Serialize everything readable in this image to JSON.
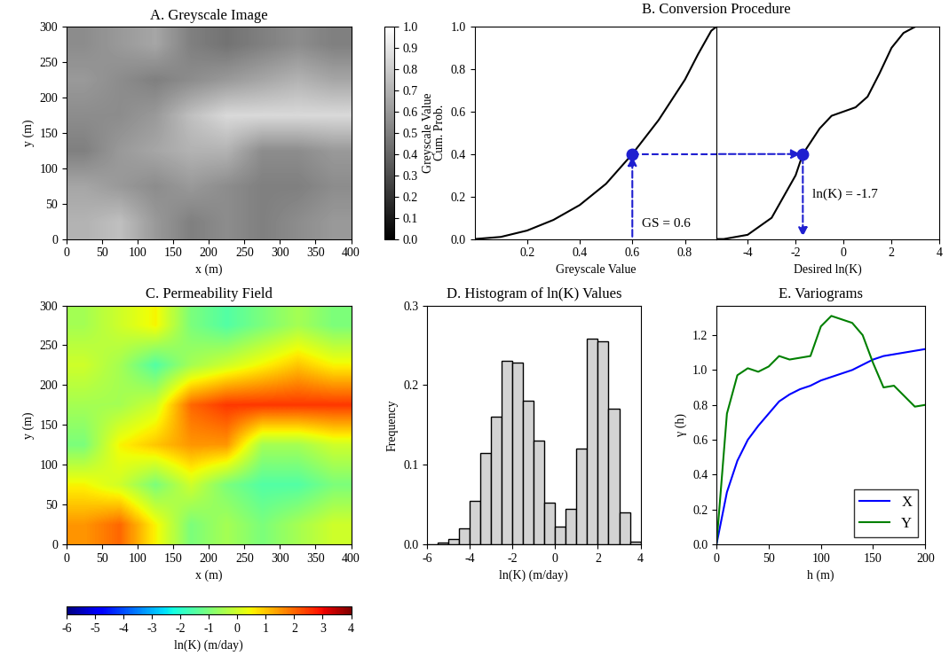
{
  "chart_data": [
    {
      "type": "heatmap",
      "title": "A. Greyscale Image",
      "x_label": "x (m)",
      "y_label": "y (m)",
      "xlim": [
        0,
        400
      ],
      "ylim": [
        0,
        300
      ],
      "xticks": [
        0,
        50,
        100,
        150,
        200,
        250,
        300,
        350,
        400
      ],
      "yticks": [
        0,
        50,
        100,
        150,
        200,
        250,
        300
      ],
      "cells": [
        [
          0.7,
          0.75,
          0.6,
          0.5,
          0.55,
          0.5,
          0.55,
          0.6
        ],
        [
          0.65,
          0.6,
          0.55,
          0.6,
          0.55,
          0.5,
          0.5,
          0.55
        ],
        [
          0.5,
          0.6,
          0.65,
          0.7,
          0.7,
          0.55,
          0.55,
          0.6
        ],
        [
          0.55,
          0.55,
          0.6,
          0.75,
          0.85,
          0.85,
          0.85,
          0.85
        ],
        [
          0.6,
          0.55,
          0.5,
          0.55,
          0.6,
          0.65,
          0.7,
          0.65
        ],
        [
          0.55,
          0.6,
          0.65,
          0.5,
          0.45,
          0.5,
          0.55,
          0.5
        ]
      ],
      "colorbar": {
        "label": "Greyscale Value",
        "range": [
          0.0,
          1.0
        ],
        "ticks": [
          0.0,
          0.1,
          0.2,
          0.3,
          0.4,
          0.5,
          0.6,
          0.7,
          0.8,
          0.9,
          1.0
        ]
      }
    },
    {
      "type": "line",
      "title": "B. Conversion Procedure",
      "y_label": "Cum. Prob.",
      "ylim": [
        0.0,
        1.0
      ],
      "yticks": [
        0.0,
        0.2,
        0.4,
        0.6,
        0.8,
        1.0
      ],
      "color": "#000000",
      "panels": [
        {
          "x_label": "Greyscale Value",
          "xlim": [
            0,
            0.92
          ],
          "xticks": [
            0.2,
            0.4,
            0.6,
            0.8
          ],
          "x": [
            0.0,
            0.1,
            0.2,
            0.3,
            0.4,
            0.5,
            0.6,
            0.7,
            0.8,
            0.85,
            0.9,
            0.92
          ],
          "values": [
            0.0,
            0.01,
            0.04,
            0.09,
            0.16,
            0.26,
            0.4,
            0.56,
            0.75,
            0.87,
            0.98,
            1.0
          ]
        },
        {
          "x_label": "Desired ln(K)",
          "xlim": [
            -5.3,
            4
          ],
          "xticks": [
            -4,
            -2,
            0,
            2,
            4
          ],
          "x": [
            -5.3,
            -5.0,
            -4.0,
            -3.0,
            -2.0,
            -1.7,
            -1.0,
            -0.5,
            0.0,
            0.5,
            1.0,
            1.5,
            2.0,
            2.5,
            3.0,
            4.0
          ],
          "values": [
            0.0,
            0.0,
            0.02,
            0.1,
            0.3,
            0.4,
            0.52,
            0.58,
            0.6,
            0.62,
            0.67,
            0.78,
            0.9,
            0.97,
            1.0,
            1.0
          ]
        }
      ],
      "conversion": {
        "greyscale": 0.6,
        "cum_prob": 0.4,
        "ln_k": -1.7,
        "color": "#1f1fd0"
      },
      "annotations": [
        "GS = 0.6",
        "ln(K) = -1.7"
      ]
    },
    {
      "type": "heatmap",
      "title": "C. Permeability Field",
      "x_label": "x (m)",
      "y_label": "y (m)",
      "xlim": [
        0,
        400
      ],
      "ylim": [
        0,
        300
      ],
      "xticks": [
        0,
        50,
        100,
        150,
        200,
        250,
        300,
        350,
        400
      ],
      "yticks": [
        0,
        50,
        100,
        150,
        200,
        250,
        300
      ],
      "cells": [
        [
          1.5,
          2.0,
          0.5,
          -1.0,
          -0.5,
          -1.0,
          -0.5,
          0.0
        ],
        [
          0.5,
          0.0,
          -1.0,
          0.0,
          -1.0,
          -1.5,
          -1.5,
          -1.0
        ],
        [
          -1.0,
          0.5,
          1.0,
          1.5,
          1.5,
          -0.5,
          -0.5,
          0.0
        ],
        [
          -0.5,
          -0.5,
          0.0,
          2.0,
          2.5,
          2.5,
          2.5,
          2.5
        ],
        [
          0.0,
          -0.5,
          -1.5,
          -0.5,
          0.0,
          0.5,
          1.0,
          0.5
        ],
        [
          -0.5,
          0.0,
          0.5,
          -1.0,
          -1.5,
          -1.0,
          -0.5,
          -1.0
        ]
      ],
      "colorbar": {
        "label": "ln(K) (m/day)",
        "range": [
          -6,
          4
        ],
        "ticks": [
          -6,
          -5,
          -4,
          -3,
          -2,
          -1,
          0,
          1,
          2,
          3,
          4
        ]
      }
    },
    {
      "type": "histogram",
      "title": "D. Histogram of ln(K) Values",
      "x_label": "ln(K) (m/day)",
      "y_label": "Frequency",
      "xlim": [
        -6,
        4
      ],
      "ylim": [
        0.0,
        0.3
      ],
      "xticks": [
        -6,
        -4,
        -2,
        0,
        2,
        4
      ],
      "yticks": [
        0.0,
        0.1,
        0.2,
        0.3
      ],
      "color": "#d3d3d3",
      "bins": [
        -6.0,
        -5.5,
        -5.0,
        -4.5,
        -4.0,
        -3.5,
        -3.0,
        -2.5,
        -2.0,
        -1.5,
        -1.0,
        -0.5,
        0.0,
        0.5,
        1.0,
        1.5,
        2.0,
        2.5,
        3.0,
        3.5,
        4.0
      ],
      "counts": [
        0.0,
        0.002,
        0.007,
        0.02,
        0.055,
        0.115,
        0.16,
        0.23,
        0.228,
        0.18,
        0.13,
        0.053,
        0.022,
        0.045,
        0.12,
        0.258,
        0.255,
        0.17,
        0.04,
        0.003
      ]
    },
    {
      "type": "line",
      "title": "E. Variograms",
      "x_label": "h (m)",
      "y_label": "γ (h)",
      "xlim": [
        0,
        200
      ],
      "ylim": [
        0.0,
        1.37
      ],
      "xticks": [
        0,
        50,
        100,
        150,
        200
      ],
      "yticks": [
        0.0,
        0.2,
        0.4,
        0.6,
        0.8,
        1.0,
        1.2
      ],
      "legend": "lower right",
      "x": [
        0,
        10,
        20,
        30,
        40,
        50,
        60,
        70,
        80,
        90,
        100,
        110,
        120,
        130,
        140,
        150,
        160,
        170,
        180,
        190,
        200
      ],
      "series": [
        {
          "name": "X",
          "color": "#0000ff",
          "values": [
            0.0,
            0.3,
            0.48,
            0.6,
            0.68,
            0.75,
            0.82,
            0.86,
            0.89,
            0.91,
            0.94,
            0.96,
            0.98,
            1.0,
            1.03,
            1.06,
            1.08,
            1.09,
            1.1,
            1.11,
            1.12
          ]
        },
        {
          "name": "Y",
          "color": "#008000",
          "values": [
            0.0,
            0.75,
            0.97,
            1.01,
            0.99,
            1.02,
            1.08,
            1.06,
            1.07,
            1.08,
            1.25,
            1.31,
            1.29,
            1.27,
            1.2,
            1.04,
            0.9,
            0.91,
            0.85,
            0.79,
            0.8
          ]
        }
      ]
    }
  ]
}
